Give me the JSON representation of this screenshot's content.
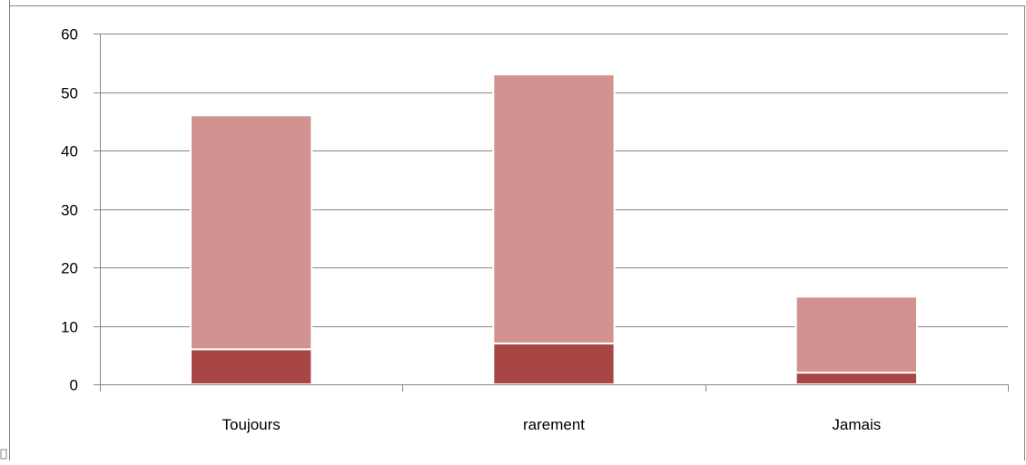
{
  "chart_data": {
    "type": "bar",
    "stacked": true,
    "categories": [
      "Toujours",
      "rarement",
      "Jamais"
    ],
    "series": [
      {
        "values": [
          6,
          7,
          2
        ],
        "color": "#A84646"
      },
      {
        "values": [
          40,
          46,
          13
        ],
        "color": "#D29291"
      }
    ],
    "ylim": [
      0,
      60
    ],
    "yticks": [
      0,
      10,
      20,
      30,
      40,
      50,
      60
    ],
    "grid": true,
    "legend": "none"
  }
}
